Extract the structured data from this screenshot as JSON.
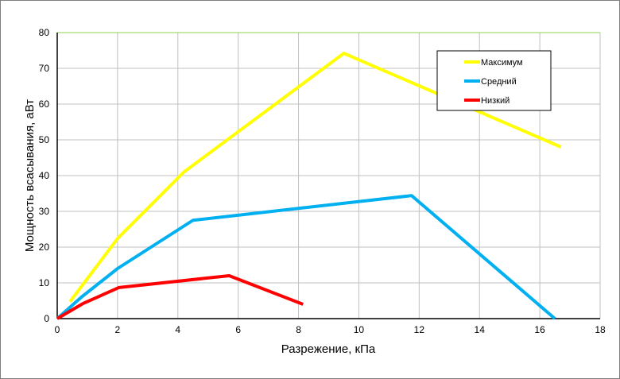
{
  "chart_data": {
    "type": "line",
    "title": "",
    "xlabel": "Разрежение, кПа",
    "ylabel": "Мощность всасывания, аВт",
    "xlim": [
      0,
      18
    ],
    "ylim": [
      0,
      80
    ],
    "xticks": [
      0,
      2,
      4,
      6,
      8,
      10,
      12,
      14,
      16,
      18
    ],
    "yticks": [
      0,
      10,
      20,
      30,
      40,
      50,
      60,
      70,
      80
    ],
    "grid": true,
    "legend_position": "top-right",
    "series": [
      {
        "name": "Максимум",
        "color": "#ffff00",
        "x": [
          0.42,
          2.0,
          4.2,
          9.5,
          16.7
        ],
        "y": [
          4.7,
          22.4,
          41,
          74.2,
          48
        ]
      },
      {
        "name": "Средний",
        "color": "#00b0f0",
        "x": [
          0,
          0.8,
          2.0,
          4.5,
          11.75,
          16.5
        ],
        "y": [
          0,
          6,
          14,
          27.5,
          34.4,
          0
        ]
      },
      {
        "name": "Низкий",
        "color": "#ff0000",
        "x": [
          0,
          0.85,
          2.05,
          5.7,
          8.15
        ],
        "y": [
          0,
          4.2,
          8.7,
          12,
          4
        ]
      }
    ]
  }
}
